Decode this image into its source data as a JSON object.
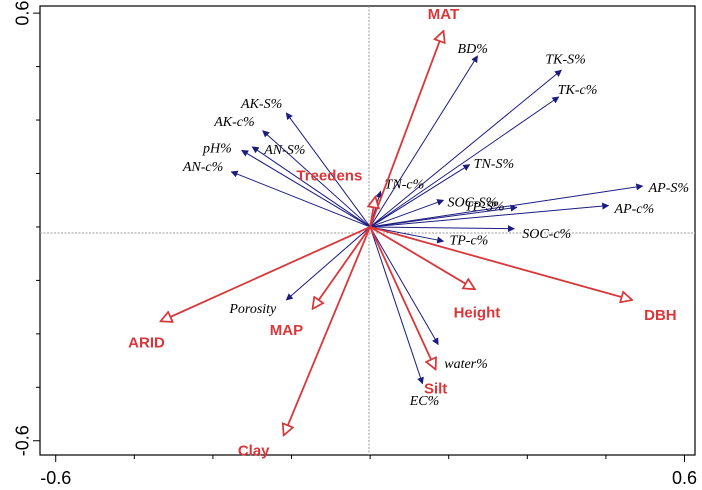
{
  "chart_data": {
    "type": "scatter",
    "subtype": "rda-biplot",
    "title": "",
    "xlabel": "",
    "ylabel": "",
    "xlim": [
      -0.63,
      0.62
    ],
    "ylim": [
      -0.64,
      0.62
    ],
    "x_ticks": [
      -0.6,
      0.6
    ],
    "x_tick_labels": [
      "-0.6",
      "0.6"
    ],
    "y_ticks": [
      0.6,
      -0.6
    ],
    "y_tick_labels": [
      "0.6",
      "-0.6"
    ],
    "grid": false,
    "origin_reference_lines": true,
    "colors": {
      "response": "#1b1b82",
      "explanatory": "#d9373a",
      "axis": "#000000",
      "reference": "#999999"
    },
    "response_vectors": [
      {
        "name": "AK-S%",
        "x": -0.16,
        "y": 0.32
      },
      {
        "name": "AK-c%",
        "x": -0.205,
        "y": 0.27
      },
      {
        "name": "AN-S%",
        "x": -0.225,
        "y": 0.225
      },
      {
        "name": "pH%",
        "x": -0.245,
        "y": 0.215
      },
      {
        "name": "AN-c%",
        "x": -0.265,
        "y": 0.155
      },
      {
        "name": "BD%",
        "x": 0.205,
        "y": 0.48
      },
      {
        "name": "TK-S%",
        "x": 0.365,
        "y": 0.44
      },
      {
        "name": "TK-c%",
        "x": 0.36,
        "y": 0.365
      },
      {
        "name": "TN-S%",
        "x": 0.19,
        "y": 0.175
      },
      {
        "name": "TN-c%",
        "x": 0.02,
        "y": 0.1
      },
      {
        "name": "SOC-S%",
        "x": 0.14,
        "y": 0.075
      },
      {
        "name": "AP-S%",
        "x": 0.52,
        "y": 0.115
      },
      {
        "name": "AP-c%",
        "x": 0.455,
        "y": 0.06
      },
      {
        "name": "TP-S%",
        "x": 0.28,
        "y": 0.055
      },
      {
        "name": "TP-c%",
        "x": 0.14,
        "y": -0.04
      },
      {
        "name": "SOC-c%",
        "x": 0.275,
        "y": -0.005
      },
      {
        "name": "Porosity",
        "x": -0.16,
        "y": -0.205
      },
      {
        "name": "water%",
        "x": 0.13,
        "y": -0.33
      },
      {
        "name": "EC%",
        "x": 0.1,
        "y": -0.44
      }
    ],
    "explanatory_vectors": [
      {
        "name": "MAT",
        "x": 0.14,
        "y": 0.55
      },
      {
        "name": "Treedens",
        "x": 0.01,
        "y": 0.085
      },
      {
        "name": "Height",
        "x": 0.2,
        "y": -0.175
      },
      {
        "name": "DBH",
        "x": 0.5,
        "y": -0.205
      },
      {
        "name": "ARID",
        "x": -0.4,
        "y": -0.265
      },
      {
        "name": "MAP",
        "x": -0.11,
        "y": -0.23
      },
      {
        "name": "Silt",
        "x": 0.125,
        "y": -0.4
      },
      {
        "name": "Clay",
        "x": -0.165,
        "y": -0.585
      }
    ]
  }
}
